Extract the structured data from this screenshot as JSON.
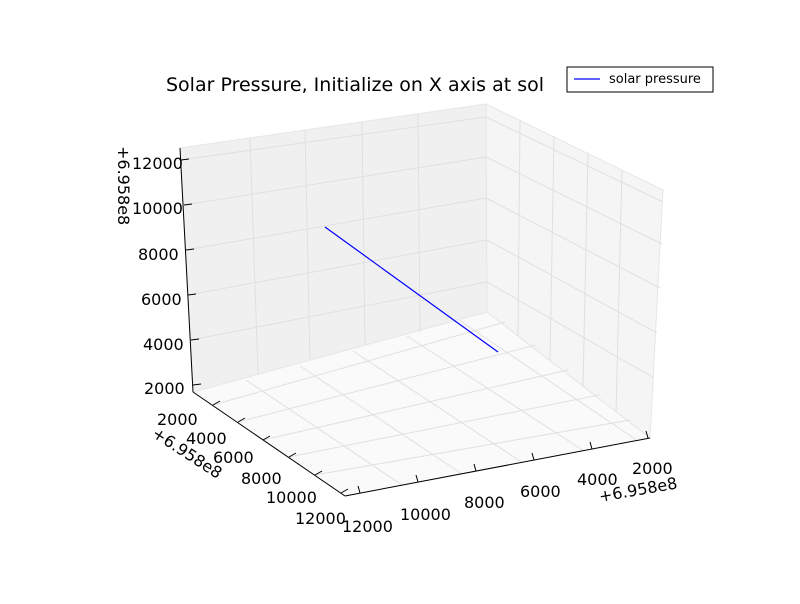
{
  "chart_data": {
    "type": "line",
    "projection": "3d",
    "title": "Solar Pressure, Initialize on X axis at sol",
    "axes": {
      "x": {
        "offset_label": "+6.958e8",
        "ticks": [
          "2000",
          "4000",
          "6000",
          "8000",
          "10000",
          "12000"
        ]
      },
      "y": {
        "offset_label": "+6.958e8",
        "ticks": [
          "2000",
          "4000",
          "6000",
          "8000",
          "10000",
          "12000"
        ]
      },
      "z": {
        "offset_label": "+6.958e8",
        "ticks": [
          "2000",
          "4000",
          "6000",
          "8000",
          "10000",
          "12000"
        ]
      }
    },
    "grid": true,
    "legend_position": "top-right",
    "series": [
      {
        "name": "solar pressure",
        "color": "#0000ff",
        "approximate_endpoints": [
          {
            "x": 10500,
            "y": 2000,
            "z": 10500
          },
          {
            "x": 5500,
            "y": 8500,
            "z": 5500
          }
        ]
      }
    ]
  }
}
